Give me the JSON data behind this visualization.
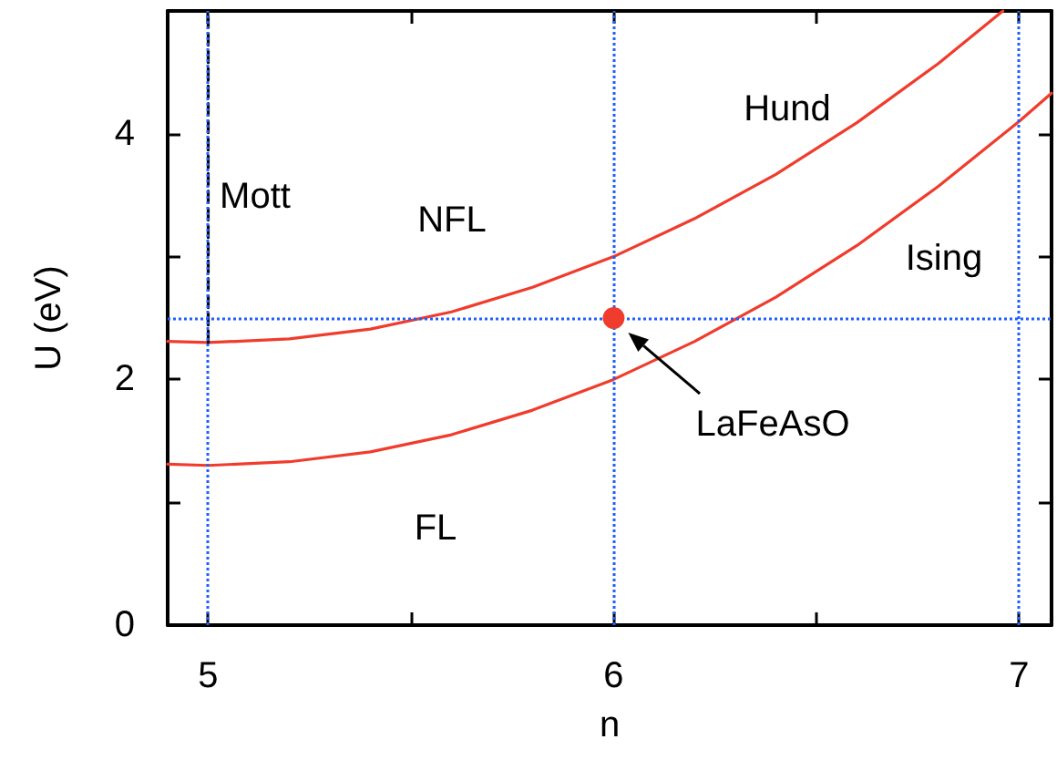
{
  "chart_data": {
    "type": "line",
    "xlabel": "n",
    "ylabel": "U (eV)",
    "xlim": [
      4.9,
      7.08
    ],
    "ylim": [
      0,
      5
    ],
    "xticks": [
      5,
      {
        "value": 5.5,
        "label": null
      },
      6,
      {
        "value": 6.5,
        "label": null
      },
      7
    ],
    "yticks": [
      0,
      {
        "value": 1,
        "label": null
      },
      2,
      {
        "value": 3,
        "label": null
      },
      4
    ],
    "grid": false,
    "marker": "none",
    "line_style": "solid",
    "series": [
      {
        "color": "#f03c2c",
        "x": [
          4.9,
          5,
          5.2,
          5.4,
          5.6,
          5.8,
          6,
          6.2,
          6.4,
          6.6,
          6.8,
          6.96
        ],
        "values": [
          2.31,
          2.3,
          2.33,
          2.41,
          2.55,
          2.75,
          3.0,
          3.31,
          3.67,
          4.09,
          4.57,
          5.0
        ]
      },
      {
        "color": "#f03c2c",
        "x": [
          4.9,
          5,
          5.2,
          5.4,
          5.6,
          5.8,
          6,
          6.2,
          6.4,
          6.6,
          6.8,
          7,
          7.08
        ],
        "values": [
          1.31,
          1.3,
          1.33,
          1.41,
          1.55,
          1.75,
          2.0,
          2.31,
          2.67,
          3.09,
          3.57,
          4.1,
          4.33
        ]
      },
      {
        "color": "#000000",
        "line_style": "dashed",
        "x": [
          5,
          5
        ],
        "values": [
          2.3,
          5
        ]
      },
      {
        "type": "scatter",
        "marker": "circle",
        "color": "#f03c2c",
        "x": [
          6
        ],
        "values": [
          2.5
        ]
      }
    ],
    "ref_lines": [
      {
        "axis": "x",
        "value": 5,
        "color": "#1f5fff",
        "line_style": "dotted"
      },
      {
        "axis": "x",
        "value": 6,
        "color": "#1f5fff",
        "line_style": "dotted"
      },
      {
        "axis": "x",
        "value": 7,
        "color": "#1f5fff",
        "line_style": "dotted"
      },
      {
        "axis": "y",
        "value": 2.5,
        "color": "#1f5fff",
        "line_style": "dotted"
      }
    ],
    "annotations": [
      "Mott",
      "NFL",
      "Hund",
      "Ising",
      "FL",
      "LaFeAsO"
    ]
  }
}
